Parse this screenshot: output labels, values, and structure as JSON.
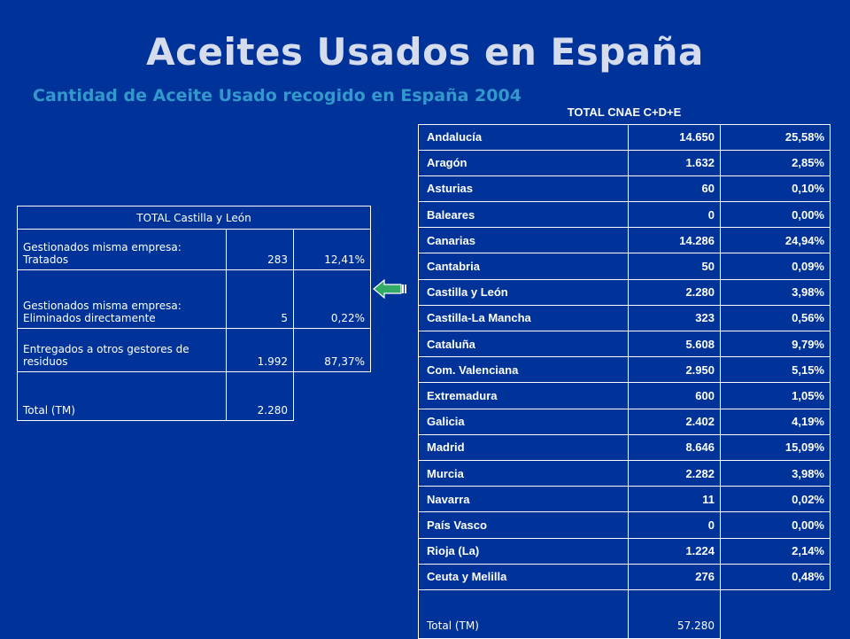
{
  "title": "Aceites Usados en España",
  "subtitle": "Cantidad de Aceite Usado recogido en España 2004",
  "castilla_leon": {
    "header": "TOTAL Castilla y León",
    "rows": [
      {
        "label": "Gestionados misma empresa: Tratados",
        "value": "283",
        "pct": "12,41%"
      },
      {
        "label": "Gestionados misma empresa: Eliminados directamente",
        "value": "5",
        "pct": "0,22%"
      },
      {
        "label": "Entregados a otros gestores de residuos",
        "value": "1.992",
        "pct": "87,37%"
      }
    ],
    "total_label": "Total (TM)",
    "total_value": "2.280"
  },
  "cnae": {
    "header": "TOTAL CNAE C+D+E",
    "rows": [
      {
        "region": "Andalucía",
        "value": "14.650",
        "pct": "25,58%"
      },
      {
        "region": "Aragón",
        "value": "1.632",
        "pct": "2,85%"
      },
      {
        "region": "Asturias",
        "value": "60",
        "pct": "0,10%"
      },
      {
        "region": "Baleares",
        "value": "0",
        "pct": "0,00%"
      },
      {
        "region": "Canarias",
        "value": "14.286",
        "pct": "24,94%"
      },
      {
        "region": "Cantabria",
        "value": "50",
        "pct": "0,09%"
      },
      {
        "region": "Castilla y León",
        "value": "2.280",
        "pct": "3,98%"
      },
      {
        "region": "Castilla-La Mancha",
        "value": "323",
        "pct": "0,56%"
      },
      {
        "region": "Cataluña",
        "value": "5.608",
        "pct": "9,79%"
      },
      {
        "region": "Com. Valenciana",
        "value": "2.950",
        "pct": "5,15%"
      },
      {
        "region": "Extremadura",
        "value": "600",
        "pct": "1,05%"
      },
      {
        "region": "Galicia",
        "value": "2.402",
        "pct": "4,19%"
      },
      {
        "region": "Madrid",
        "value": "8.646",
        "pct": "15,09%"
      },
      {
        "region": "Murcia",
        "value": "2.282",
        "pct": "3,98%"
      },
      {
        "region": "Navarra",
        "value": "11",
        "pct": "0,02%"
      },
      {
        "region": "País Vasco",
        "value": "0",
        "pct": "0,00%"
      },
      {
        "region": "Rioja (La)",
        "value": "1.224",
        "pct": "2,14%"
      },
      {
        "region": "Ceuta y Melilla",
        "value": "276",
        "pct": "0,48%"
      }
    ],
    "total_label": "Total (TM)",
    "total_value": "57.280"
  },
  "colors": {
    "background": "#003399",
    "title": "#d5dcee",
    "subtitle": "#3399cc",
    "arrow": "#33aa66"
  },
  "icons": {
    "arrow": "arrow-left-icon"
  }
}
